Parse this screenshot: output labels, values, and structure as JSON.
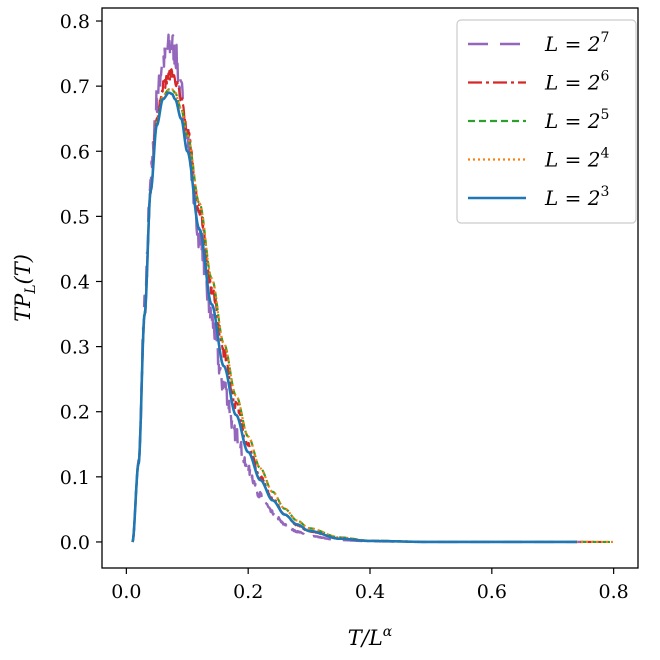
{
  "chart_data": {
    "type": "line",
    "title": "",
    "xlabel": "T/L^α",
    "ylabel": "TP_L(T)",
    "xlim": [
      -0.04,
      0.84
    ],
    "ylim": [
      -0.04,
      0.82
    ],
    "xticks": [
      0.0,
      0.2,
      0.4,
      0.6,
      0.8
    ],
    "yticks": [
      0.0,
      0.1,
      0.2,
      0.3,
      0.4,
      0.5,
      0.6,
      0.7,
      0.8
    ],
    "xtick_labels": [
      "0.0",
      "0.2",
      "0.4",
      "0.6",
      "0.8"
    ],
    "ytick_labels": [
      "0.0",
      "0.1",
      "0.2",
      "0.3",
      "0.4",
      "0.5",
      "0.6",
      "0.7",
      "0.8"
    ],
    "grid": false,
    "legend_position": "top-right",
    "series": [
      {
        "name": "L = 2^7",
        "color": "#9467bd",
        "dash": "20,12",
        "width": 2.4,
        "noise": 0.022,
        "points": [
          [
            0.01,
            0.0
          ],
          [
            0.02,
            0.12
          ],
          [
            0.03,
            0.36
          ],
          [
            0.04,
            0.56
          ],
          [
            0.05,
            0.68
          ],
          [
            0.06,
            0.74
          ],
          [
            0.07,
            0.76
          ],
          [
            0.075,
            0.765
          ],
          [
            0.08,
            0.75
          ],
          [
            0.09,
            0.69
          ],
          [
            0.1,
            0.62
          ],
          [
            0.12,
            0.47
          ],
          [
            0.14,
            0.34
          ],
          [
            0.16,
            0.24
          ],
          [
            0.18,
            0.165
          ],
          [
            0.2,
            0.11
          ],
          [
            0.22,
            0.072
          ],
          [
            0.24,
            0.045
          ],
          [
            0.26,
            0.027
          ],
          [
            0.28,
            0.016
          ],
          [
            0.3,
            0.009
          ],
          [
            0.35,
            0.003
          ],
          [
            0.4,
            0.001
          ],
          [
            0.5,
            0.0
          ],
          [
            0.6,
            0.0
          ],
          [
            0.7,
            0.0
          ],
          [
            0.75,
            0.0
          ]
        ]
      },
      {
        "name": "L = 2^6",
        "color": "#d62728",
        "dash": "14,4,3,4",
        "width": 2.2,
        "noise": 0.009,
        "points": [
          [
            0.01,
            0.0
          ],
          [
            0.02,
            0.12
          ],
          [
            0.03,
            0.35
          ],
          [
            0.04,
            0.54
          ],
          [
            0.05,
            0.65
          ],
          [
            0.06,
            0.7
          ],
          [
            0.07,
            0.715
          ],
          [
            0.075,
            0.72
          ],
          [
            0.08,
            0.71
          ],
          [
            0.09,
            0.68
          ],
          [
            0.1,
            0.63
          ],
          [
            0.12,
            0.51
          ],
          [
            0.14,
            0.39
          ],
          [
            0.16,
            0.29
          ],
          [
            0.18,
            0.21
          ],
          [
            0.2,
            0.148
          ],
          [
            0.22,
            0.1
          ],
          [
            0.24,
            0.066
          ],
          [
            0.26,
            0.042
          ],
          [
            0.28,
            0.026
          ],
          [
            0.3,
            0.016
          ],
          [
            0.35,
            0.005
          ],
          [
            0.4,
            0.0015
          ],
          [
            0.5,
            0.0
          ],
          [
            0.6,
            0.0
          ],
          [
            0.7,
            0.0
          ],
          [
            0.78,
            0.0
          ]
        ]
      },
      {
        "name": "L = 2^5",
        "color": "#2ca02c",
        "dash": "7,4",
        "width": 2.2,
        "noise": 0.0,
        "points": [
          [
            0.01,
            0.0
          ],
          [
            0.02,
            0.12
          ],
          [
            0.03,
            0.35
          ],
          [
            0.04,
            0.54
          ],
          [
            0.05,
            0.645
          ],
          [
            0.06,
            0.685
          ],
          [
            0.07,
            0.695
          ],
          [
            0.075,
            0.695
          ],
          [
            0.08,
            0.69
          ],
          [
            0.09,
            0.665
          ],
          [
            0.1,
            0.625
          ],
          [
            0.12,
            0.52
          ],
          [
            0.14,
            0.405
          ],
          [
            0.16,
            0.305
          ],
          [
            0.18,
            0.225
          ],
          [
            0.2,
            0.162
          ],
          [
            0.22,
            0.113
          ],
          [
            0.24,
            0.077
          ],
          [
            0.26,
            0.051
          ],
          [
            0.28,
            0.033
          ],
          [
            0.3,
            0.021
          ],
          [
            0.35,
            0.007
          ],
          [
            0.4,
            0.002
          ],
          [
            0.5,
            0.0
          ],
          [
            0.6,
            0.0
          ],
          [
            0.7,
            0.0
          ],
          [
            0.8,
            0.0
          ]
        ]
      },
      {
        "name": "L = 2^4",
        "color": "#ff7f0e",
        "dash": "2,3",
        "width": 2.2,
        "noise": 0.0,
        "points": [
          [
            0.01,
            0.0
          ],
          [
            0.02,
            0.12
          ],
          [
            0.03,
            0.35
          ],
          [
            0.04,
            0.54
          ],
          [
            0.05,
            0.645
          ],
          [
            0.06,
            0.685
          ],
          [
            0.07,
            0.695
          ],
          [
            0.075,
            0.695
          ],
          [
            0.08,
            0.69
          ],
          [
            0.09,
            0.665
          ],
          [
            0.1,
            0.625
          ],
          [
            0.12,
            0.52
          ],
          [
            0.14,
            0.405
          ],
          [
            0.16,
            0.305
          ],
          [
            0.18,
            0.225
          ],
          [
            0.2,
            0.162
          ],
          [
            0.22,
            0.113
          ],
          [
            0.24,
            0.077
          ],
          [
            0.26,
            0.051
          ],
          [
            0.28,
            0.033
          ],
          [
            0.3,
            0.021
          ],
          [
            0.35,
            0.007
          ],
          [
            0.4,
            0.002
          ],
          [
            0.5,
            0.0
          ],
          [
            0.6,
            0.0
          ],
          [
            0.7,
            0.0
          ],
          [
            0.8,
            0.0
          ]
        ]
      },
      {
        "name": "L = 2^3",
        "color": "#1f77b4",
        "dash": "",
        "width": 2.6,
        "noise": 0.0,
        "points": [
          [
            0.01,
            0.0
          ],
          [
            0.02,
            0.12
          ],
          [
            0.03,
            0.35
          ],
          [
            0.04,
            0.54
          ],
          [
            0.05,
            0.64
          ],
          [
            0.06,
            0.68
          ],
          [
            0.07,
            0.69
          ],
          [
            0.075,
            0.688
          ],
          [
            0.08,
            0.68
          ],
          [
            0.09,
            0.65
          ],
          [
            0.1,
            0.6
          ],
          [
            0.12,
            0.48
          ],
          [
            0.14,
            0.365
          ],
          [
            0.16,
            0.27
          ],
          [
            0.18,
            0.195
          ],
          [
            0.2,
            0.138
          ],
          [
            0.22,
            0.095
          ],
          [
            0.24,
            0.064
          ],
          [
            0.26,
            0.042
          ],
          [
            0.28,
            0.027
          ],
          [
            0.3,
            0.017
          ],
          [
            0.35,
            0.005
          ],
          [
            0.4,
            0.0015
          ],
          [
            0.5,
            0.0
          ],
          [
            0.6,
            0.0
          ],
          [
            0.7,
            0.0
          ],
          [
            0.74,
            0.0
          ]
        ]
      }
    ]
  }
}
